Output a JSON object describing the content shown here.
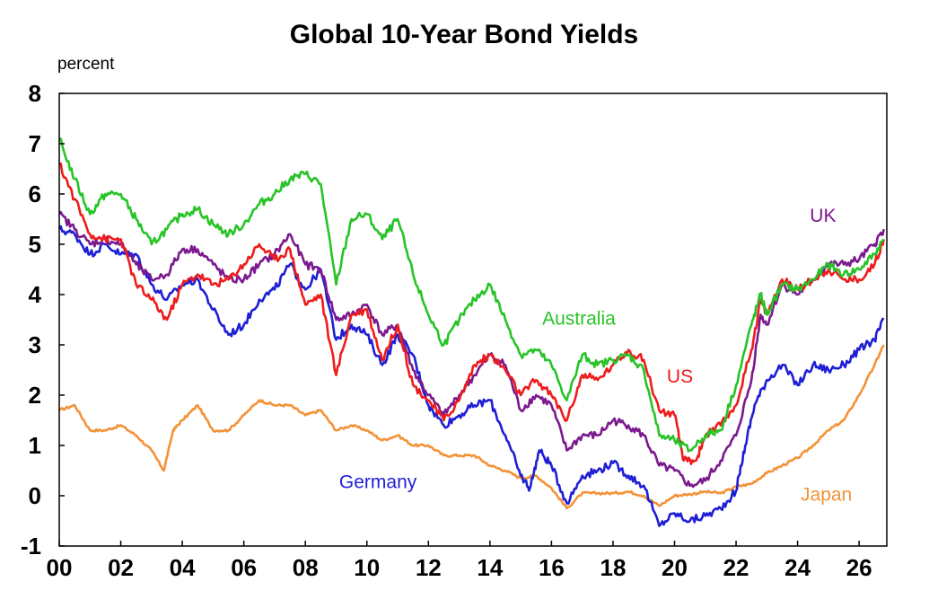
{
  "chart_data": {
    "type": "line",
    "title": "Global 10-Year Bond Yields",
    "ylabel": "percent",
    "xlabel": "",
    "xlim": [
      2000,
      2026.9
    ],
    "ylim": [
      -1,
      8
    ],
    "yticks": [
      8,
      7,
      6,
      5,
      4,
      3,
      2,
      1,
      0,
      -1
    ],
    "xticks": [
      {
        "x": 2000,
        "label": "00"
      },
      {
        "x": 2002,
        "label": "02"
      },
      {
        "x": 2004,
        "label": "04"
      },
      {
        "x": 2006,
        "label": "06"
      },
      {
        "x": 2008,
        "label": "08"
      },
      {
        "x": 2010,
        "label": "10"
      },
      {
        "x": 2012,
        "label": "12"
      },
      {
        "x": 2014,
        "label": "14"
      },
      {
        "x": 2016,
        "label": "16"
      },
      {
        "x": 2018,
        "label": "18"
      },
      {
        "x": 2020,
        "label": "20"
      },
      {
        "x": 2022,
        "label": "22"
      },
      {
        "x": 2024,
        "label": "24"
      },
      {
        "x": 2026,
        "label": "26"
      }
    ],
    "grid": false,
    "legend": "inline series labels",
    "series": [
      {
        "name": "Japan",
        "color": "#f39237",
        "label_pos": [
          2024.1,
          -0.1
        ],
        "points": [
          [
            2000,
            1.7
          ],
          [
            2000.5,
            1.8
          ],
          [
            2001,
            1.3
          ],
          [
            2001.5,
            1.3
          ],
          [
            2002,
            1.4
          ],
          [
            2002.5,
            1.2
          ],
          [
            2003,
            0.9
          ],
          [
            2003.4,
            0.5
          ],
          [
            2003.7,
            1.3
          ],
          [
            2004,
            1.5
          ],
          [
            2004.5,
            1.8
          ],
          [
            2005,
            1.3
          ],
          [
            2005.5,
            1.3
          ],
          [
            2006,
            1.6
          ],
          [
            2006.5,
            1.9
          ],
          [
            2007,
            1.8
          ],
          [
            2007.5,
            1.8
          ],
          [
            2008,
            1.6
          ],
          [
            2008.5,
            1.7
          ],
          [
            2009,
            1.3
          ],
          [
            2009.5,
            1.4
          ],
          [
            2010,
            1.3
          ],
          [
            2010.5,
            1.1
          ],
          [
            2011,
            1.2
          ],
          [
            2011.5,
            1.0
          ],
          [
            2012,
            1.0
          ],
          [
            2012.5,
            0.8
          ],
          [
            2013,
            0.8
          ],
          [
            2013.5,
            0.8
          ],
          [
            2014,
            0.6
          ],
          [
            2014.5,
            0.5
          ],
          [
            2015,
            0.35
          ],
          [
            2015.5,
            0.4
          ],
          [
            2016,
            0.15
          ],
          [
            2016.5,
            -0.25
          ],
          [
            2017,
            0.05
          ],
          [
            2017.5,
            0.05
          ],
          [
            2018,
            0.05
          ],
          [
            2018.5,
            0.08
          ],
          [
            2019,
            0.0
          ],
          [
            2019.5,
            -0.2
          ],
          [
            2020,
            0.0
          ],
          [
            2020.5,
            0.03
          ],
          [
            2021,
            0.08
          ],
          [
            2021.5,
            0.05
          ],
          [
            2022,
            0.18
          ],
          [
            2022.5,
            0.24
          ],
          [
            2023,
            0.45
          ],
          [
            2023.5,
            0.6
          ],
          [
            2024,
            0.75
          ],
          [
            2024.5,
            1.0
          ],
          [
            2025,
            1.3
          ],
          [
            2025.5,
            1.5
          ],
          [
            2026,
            2.0
          ],
          [
            2026.5,
            2.6
          ],
          [
            2026.8,
            3.0
          ]
        ]
      },
      {
        "name": "Germany",
        "color": "#1f1fd6",
        "label_pos": [
          2009.1,
          0.15
        ],
        "points": [
          [
            2000,
            5.3
          ],
          [
            2000.5,
            5.2
          ],
          [
            2001,
            4.8
          ],
          [
            2001.5,
            5.0
          ],
          [
            2002,
            4.8
          ],
          [
            2002.5,
            4.8
          ],
          [
            2003,
            4.2
          ],
          [
            2003.5,
            3.9
          ],
          [
            2004,
            4.2
          ],
          [
            2004.5,
            4.3
          ],
          [
            2005,
            3.7
          ],
          [
            2005.5,
            3.2
          ],
          [
            2006,
            3.4
          ],
          [
            2006.5,
            3.9
          ],
          [
            2007,
            4.1
          ],
          [
            2007.5,
            4.6
          ],
          [
            2008,
            4.1
          ],
          [
            2008.5,
            4.5
          ],
          [
            2009,
            3.1
          ],
          [
            2009.5,
            3.4
          ],
          [
            2010,
            3.2
          ],
          [
            2010.5,
            2.6
          ],
          [
            2011,
            3.2
          ],
          [
            2011.5,
            2.8
          ],
          [
            2012,
            1.8
          ],
          [
            2012.5,
            1.4
          ],
          [
            2013,
            1.6
          ],
          [
            2013.5,
            1.8
          ],
          [
            2014,
            1.9
          ],
          [
            2014.5,
            1.2
          ],
          [
            2015,
            0.4
          ],
          [
            2015.3,
            0.15
          ],
          [
            2015.6,
            0.9
          ],
          [
            2016,
            0.6
          ],
          [
            2016.5,
            -0.15
          ],
          [
            2017,
            0.4
          ],
          [
            2017.5,
            0.5
          ],
          [
            2018,
            0.65
          ],
          [
            2018.5,
            0.4
          ],
          [
            2019,
            0.2
          ],
          [
            2019.5,
            -0.6
          ],
          [
            2020,
            -0.35
          ],
          [
            2020.5,
            -0.5
          ],
          [
            2021,
            -0.4
          ],
          [
            2021.5,
            -0.25
          ],
          [
            2022,
            0.1
          ],
          [
            2022.3,
            1.0
          ],
          [
            2022.6,
            1.8
          ],
          [
            2023,
            2.3
          ],
          [
            2023.5,
            2.6
          ],
          [
            2024,
            2.2
          ],
          [
            2024.5,
            2.6
          ],
          [
            2025,
            2.5
          ],
          [
            2025.5,
            2.6
          ],
          [
            2026,
            2.9
          ],
          [
            2026.5,
            3.1
          ],
          [
            2026.8,
            3.5
          ]
        ]
      },
      {
        "name": "UK",
        "color": "#7b1a8f",
        "label_pos": [
          2024.4,
          5.45
        ],
        "points": [
          [
            2000,
            5.6
          ],
          [
            2000.5,
            5.3
          ],
          [
            2001,
            5.0
          ],
          [
            2001.5,
            5.1
          ],
          [
            2002,
            5.0
          ],
          [
            2002.5,
            4.6
          ],
          [
            2003,
            4.3
          ],
          [
            2003.5,
            4.4
          ],
          [
            2004,
            4.9
          ],
          [
            2004.5,
            4.9
          ],
          [
            2005,
            4.6
          ],
          [
            2005.5,
            4.3
          ],
          [
            2006,
            4.3
          ],
          [
            2006.5,
            4.6
          ],
          [
            2007,
            4.8
          ],
          [
            2007.5,
            5.2
          ],
          [
            2008,
            4.6
          ],
          [
            2008.5,
            4.5
          ],
          [
            2009,
            3.5
          ],
          [
            2009.5,
            3.6
          ],
          [
            2010,
            3.8
          ],
          [
            2010.5,
            3.2
          ],
          [
            2011,
            3.4
          ],
          [
            2011.5,
            2.5
          ],
          [
            2012,
            2.0
          ],
          [
            2012.5,
            1.6
          ],
          [
            2013,
            2.0
          ],
          [
            2013.5,
            2.4
          ],
          [
            2014,
            2.8
          ],
          [
            2014.5,
            2.6
          ],
          [
            2015,
            1.7
          ],
          [
            2015.5,
            2.0
          ],
          [
            2016,
            1.8
          ],
          [
            2016.5,
            0.9
          ],
          [
            2017,
            1.2
          ],
          [
            2017.5,
            1.2
          ],
          [
            2018,
            1.5
          ],
          [
            2018.5,
            1.4
          ],
          [
            2019,
            1.2
          ],
          [
            2019.5,
            0.6
          ],
          [
            2020,
            0.5
          ],
          [
            2020.5,
            0.2
          ],
          [
            2021,
            0.3
          ],
          [
            2021.5,
            0.7
          ],
          [
            2022,
            1.2
          ],
          [
            2022.5,
            2.3
          ],
          [
            2022.8,
            3.6
          ],
          [
            2023,
            3.4
          ],
          [
            2023.5,
            4.2
          ],
          [
            2024,
            4.0
          ],
          [
            2024.5,
            4.3
          ],
          [
            2025,
            4.6
          ],
          [
            2025.5,
            4.6
          ],
          [
            2026,
            4.7
          ],
          [
            2026.5,
            5.0
          ],
          [
            2026.8,
            5.3
          ]
        ]
      },
      {
        "name": "US",
        "color": "#ee1c1c",
        "label_pos": [
          2019.75,
          2.25
        ],
        "points": [
          [
            2000,
            6.6
          ],
          [
            2000.5,
            5.9
          ],
          [
            2001,
            5.2
          ],
          [
            2001.5,
            5.1
          ],
          [
            2002,
            5.1
          ],
          [
            2002.5,
            4.2
          ],
          [
            2003,
            3.9
          ],
          [
            2003.5,
            3.5
          ],
          [
            2004,
            4.2
          ],
          [
            2004.5,
            4.4
          ],
          [
            2005,
            4.2
          ],
          [
            2005.5,
            4.3
          ],
          [
            2006,
            4.6
          ],
          [
            2006.5,
            5.0
          ],
          [
            2007,
            4.7
          ],
          [
            2007.5,
            4.9
          ],
          [
            2008,
            3.8
          ],
          [
            2008.5,
            4.0
          ],
          [
            2009,
            2.4
          ],
          [
            2009.5,
            3.6
          ],
          [
            2010,
            3.7
          ],
          [
            2010.5,
            2.7
          ],
          [
            2011,
            3.4
          ],
          [
            2011.5,
            2.2
          ],
          [
            2012,
            1.9
          ],
          [
            2012.5,
            1.5
          ],
          [
            2013,
            1.9
          ],
          [
            2013.5,
            2.6
          ],
          [
            2014,
            2.8
          ],
          [
            2014.5,
            2.5
          ],
          [
            2015,
            2.0
          ],
          [
            2015.5,
            2.3
          ],
          [
            2016,
            2.0
          ],
          [
            2016.5,
            1.5
          ],
          [
            2017,
            2.4
          ],
          [
            2017.5,
            2.3
          ],
          [
            2018,
            2.6
          ],
          [
            2018.5,
            2.9
          ],
          [
            2019,
            2.7
          ],
          [
            2019.5,
            1.7
          ],
          [
            2020,
            1.6
          ],
          [
            2020.3,
            0.7
          ],
          [
            2020.7,
            0.7
          ],
          [
            2021,
            1.2
          ],
          [
            2021.5,
            1.4
          ],
          [
            2022,
            1.8
          ],
          [
            2022.5,
            2.9
          ],
          [
            2022.8,
            3.9
          ],
          [
            2023,
            3.6
          ],
          [
            2023.5,
            4.3
          ],
          [
            2024,
            4.1
          ],
          [
            2024.5,
            4.3
          ],
          [
            2025,
            4.5
          ],
          [
            2025.5,
            4.3
          ],
          [
            2026,
            4.3
          ],
          [
            2026.5,
            4.6
          ],
          [
            2026.8,
            5.1
          ]
        ]
      },
      {
        "name": "Australia",
        "color": "#27c427",
        "label_pos": [
          2015.7,
          3.4
        ],
        "points": [
          [
            2000,
            7.1
          ],
          [
            2000.5,
            6.3
          ],
          [
            2001,
            5.6
          ],
          [
            2001.5,
            6.0
          ],
          [
            2002,
            6.0
          ],
          [
            2002.5,
            5.5
          ],
          [
            2003,
            5.0
          ],
          [
            2003.5,
            5.3
          ],
          [
            2004,
            5.6
          ],
          [
            2004.5,
            5.7
          ],
          [
            2005,
            5.4
          ],
          [
            2005.5,
            5.2
          ],
          [
            2006,
            5.4
          ],
          [
            2006.5,
            5.8
          ],
          [
            2007,
            6.0
          ],
          [
            2007.5,
            6.3
          ],
          [
            2008,
            6.4
          ],
          [
            2008.5,
            6.2
          ],
          [
            2009,
            4.2
          ],
          [
            2009.5,
            5.5
          ],
          [
            2010,
            5.6
          ],
          [
            2010.5,
            5.1
          ],
          [
            2011,
            5.5
          ],
          [
            2011.5,
            4.4
          ],
          [
            2012,
            3.6
          ],
          [
            2012.5,
            3.0
          ],
          [
            2013,
            3.5
          ],
          [
            2013.5,
            3.9
          ],
          [
            2014,
            4.2
          ],
          [
            2014.5,
            3.5
          ],
          [
            2015,
            2.8
          ],
          [
            2015.5,
            2.9
          ],
          [
            2016,
            2.6
          ],
          [
            2016.5,
            1.9
          ],
          [
            2017,
            2.8
          ],
          [
            2017.5,
            2.6
          ],
          [
            2018,
            2.7
          ],
          [
            2018.5,
            2.8
          ],
          [
            2019,
            2.5
          ],
          [
            2019.5,
            1.2
          ],
          [
            2020,
            1.1
          ],
          [
            2020.5,
            0.9
          ],
          [
            2021,
            1.2
          ],
          [
            2021.5,
            1.3
          ],
          [
            2022,
            2.2
          ],
          [
            2022.5,
            3.4
          ],
          [
            2022.8,
            4.0
          ],
          [
            2023,
            3.6
          ],
          [
            2023.5,
            4.2
          ],
          [
            2024,
            4.1
          ],
          [
            2024.5,
            4.3
          ],
          [
            2025,
            4.6
          ],
          [
            2025.5,
            4.4
          ],
          [
            2026,
            4.5
          ],
          [
            2026.5,
            4.8
          ],
          [
            2026.8,
            5.1
          ]
        ]
      }
    ]
  }
}
